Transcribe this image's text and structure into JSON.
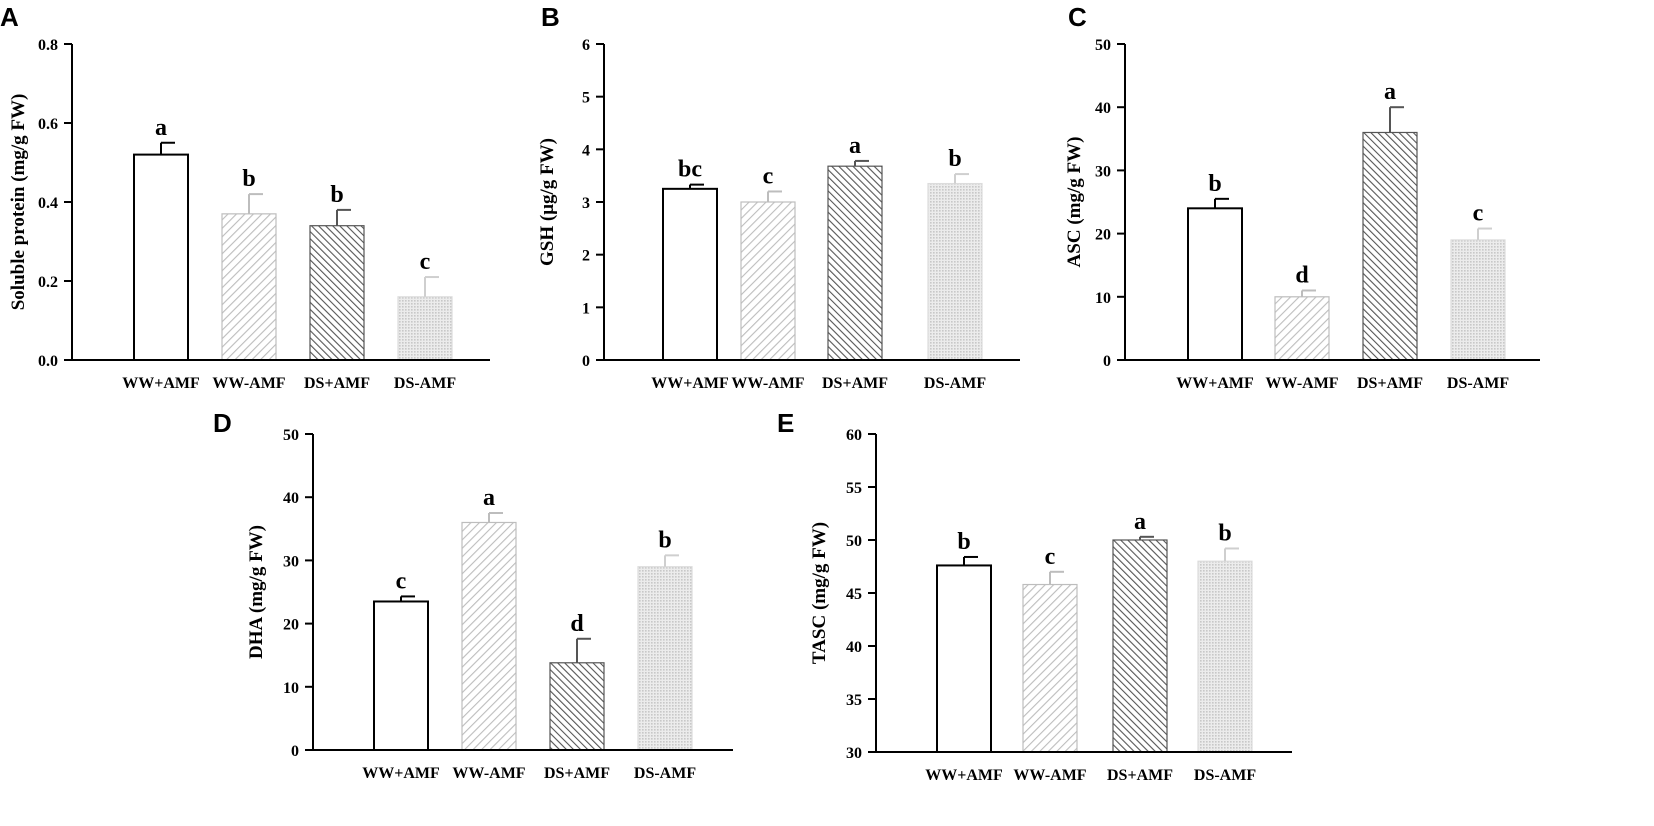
{
  "chart_data": [
    {
      "panel": "A",
      "type": "bar",
      "categories": [
        "WW+AMF",
        "WW-AMF",
        "DS+AMF",
        "DS-AMF"
      ],
      "values": [
        0.52,
        0.37,
        0.34,
        0.16
      ],
      "errors": [
        0.03,
        0.05,
        0.04,
        0.05
      ],
      "letters": [
        "a",
        "b",
        "b",
        "c"
      ],
      "ylabel": "Soluble protein (mg/g FW)",
      "ylim": [
        0,
        0.8
      ],
      "yticks": [
        "0.0",
        "0.2",
        "0.4",
        "0.6",
        "0.8"
      ],
      "ytick_values": [
        0,
        0.2,
        0.4,
        0.6,
        0.8
      ]
    },
    {
      "panel": "B",
      "type": "bar",
      "categories": [
        "WW+AMF",
        "WW-AMF",
        "DS+AMF",
        "DS-AMF"
      ],
      "values": [
        3.25,
        3.0,
        3.68,
        3.35
      ],
      "errors": [
        0.08,
        0.2,
        0.1,
        0.18
      ],
      "letters": [
        "bc",
        "c",
        "a",
        "b"
      ],
      "ylabel": "GSH (μg/g FW)",
      "ylim": [
        0,
        6
      ],
      "yticks": [
        "0",
        "1",
        "2",
        "3",
        "4",
        "5",
        "6"
      ],
      "ytick_values": [
        0,
        1,
        2,
        3,
        4,
        5,
        6
      ]
    },
    {
      "panel": "C",
      "type": "bar",
      "categories": [
        "WW+AMF",
        "WW-AMF",
        "DS+AMF",
        "DS-AMF"
      ],
      "values": [
        24,
        10,
        36,
        19
      ],
      "errors": [
        1.5,
        1,
        4,
        1.8
      ],
      "letters": [
        "b",
        "d",
        "a",
        "c"
      ],
      "ylabel": "ASC (mg/g FW)",
      "ylim": [
        0,
        50
      ],
      "yticks": [
        "0",
        "10",
        "20",
        "30",
        "40",
        "50"
      ],
      "ytick_values": [
        0,
        10,
        20,
        30,
        40,
        50
      ]
    },
    {
      "panel": "D",
      "type": "bar",
      "categories": [
        "WW+AMF",
        "WW-AMF",
        "DS+AMF",
        "DS-AMF"
      ],
      "values": [
        23.5,
        36,
        13.8,
        29
      ],
      "errors": [
        0.8,
        1.5,
        3.8,
        1.8
      ],
      "letters": [
        "c",
        "a",
        "d",
        "b"
      ],
      "ylabel": "DHA (mg/g FW)",
      "ylim": [
        0,
        50
      ],
      "yticks": [
        "0",
        "10",
        "20",
        "30",
        "40",
        "50"
      ],
      "ytick_values": [
        0,
        10,
        20,
        30,
        40,
        50
      ]
    },
    {
      "panel": "E",
      "type": "bar",
      "categories": [
        "WW+AMF",
        "WW-AMF",
        "DS+AMF",
        "DS-AMF"
      ],
      "values": [
        47.6,
        45.8,
        50,
        48
      ],
      "errors": [
        0.8,
        1.2,
        0.3,
        1.2
      ],
      "letters": [
        "b",
        "c",
        "a",
        "b"
      ],
      "ylabel": "TASC (mg/g FW)",
      "ylim": [
        30,
        60
      ],
      "yticks": [
        "30",
        "35",
        "40",
        "45",
        "50",
        "55",
        "60"
      ],
      "ytick_values": [
        30,
        35,
        40,
        45,
        50,
        55,
        60
      ]
    }
  ],
  "colors": {
    "axis": "#000000",
    "bar_stroke_dark": "#000000",
    "bar_stroke_light": "#bdbdbd",
    "hatch_light": "#bdbdbd",
    "hatch_dark": "#555555",
    "dots": "#c8c8c8"
  }
}
